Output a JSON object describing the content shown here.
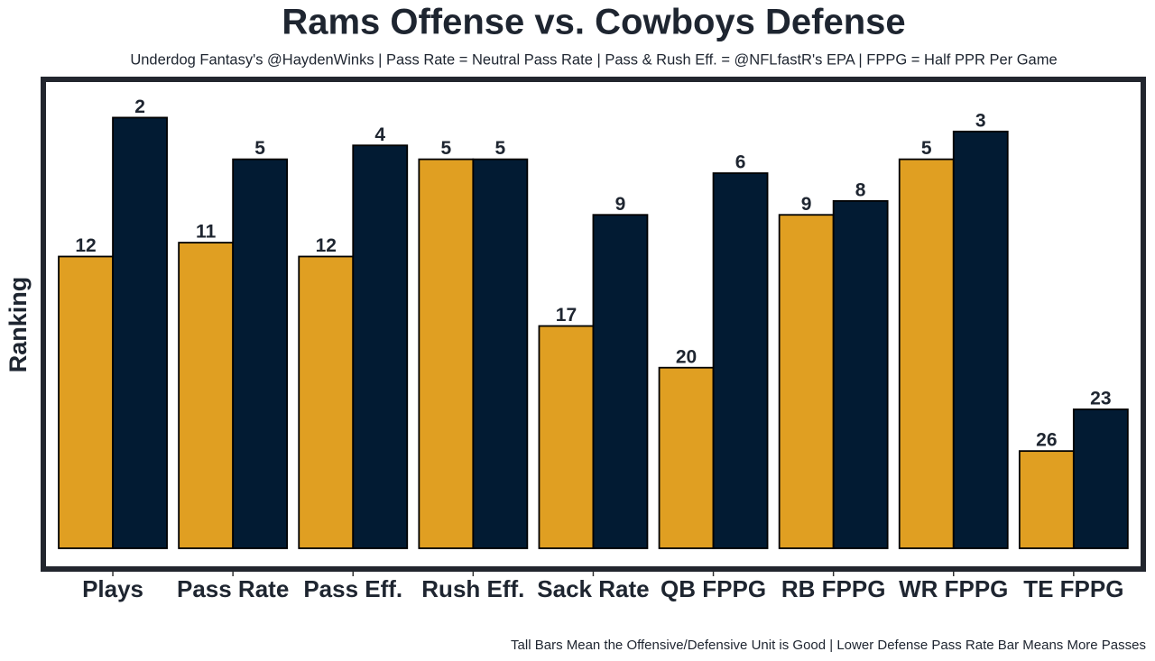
{
  "chart_data": {
    "type": "bar",
    "title": "Rams Offense vs. Cowboys Defense",
    "subtitle": "Underdog Fantasy's @HaydenWinks | Pass Rate = Neutral Pass Rate | Pass & Rush Eff. = @NFLfastR's EPA | FPPG = Half PPR Per Game",
    "y_label": "Ranking",
    "caption": "Tall Bars Mean the Offensive/Defensive Unit is Good | Lower Defense Pass Rate Bar Means More Passes",
    "categories": [
      "Plays",
      "Pass Rate",
      "Pass Eff.",
      "Rush Eff.",
      "Sack Rate",
      "QB FPPG",
      "RB FPPG",
      "WR FPPG",
      "TE FPPG"
    ],
    "series": [
      {
        "color": "#e09f22",
        "values": [
          12,
          11,
          12,
          5,
          17,
          20,
          9,
          5,
          26
        ]
      },
      {
        "color": "#021b33",
        "values": [
          2,
          5,
          4,
          5,
          9,
          6,
          8,
          3,
          23
        ]
      }
    ],
    "ylim": [
      33,
      1
    ]
  }
}
